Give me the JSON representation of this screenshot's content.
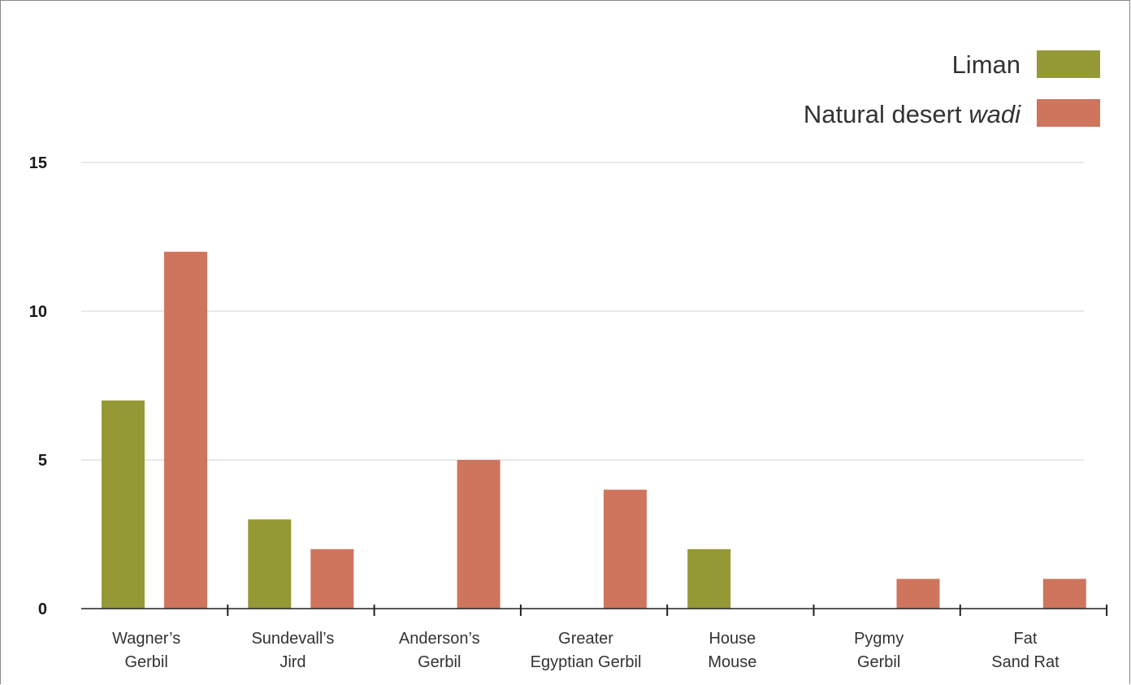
{
  "chart_data": {
    "type": "bar",
    "categories": [
      [
        "Wagner’s",
        "Gerbil"
      ],
      [
        "Sundevall’s",
        "Jird"
      ],
      [
        "Anderson’s",
        "Gerbil"
      ],
      [
        "Greater",
        "Egyptian Gerbil"
      ],
      [
        "House",
        "Mouse"
      ],
      [
        "Pygmy",
        "Gerbil"
      ],
      [
        "Fat",
        "Sand Rat"
      ]
    ],
    "series": [
      {
        "name": "Liman",
        "color": "#949936",
        "values": [
          7,
          3,
          0,
          0,
          2,
          0,
          0
        ]
      },
      {
        "name": "Natural desert wadi",
        "name_plain": "Natural desert ",
        "name_italic": "wadi",
        "color": "#cf755e",
        "values": [
          12,
          2,
          5,
          4,
          0,
          1,
          1
        ]
      }
    ],
    "yticks": [
      0,
      5,
      10,
      15
    ],
    "ylim": [
      0,
      15
    ],
    "grid": true,
    "legend": "top-right",
    "title": "",
    "xlabel": "",
    "ylabel": ""
  }
}
